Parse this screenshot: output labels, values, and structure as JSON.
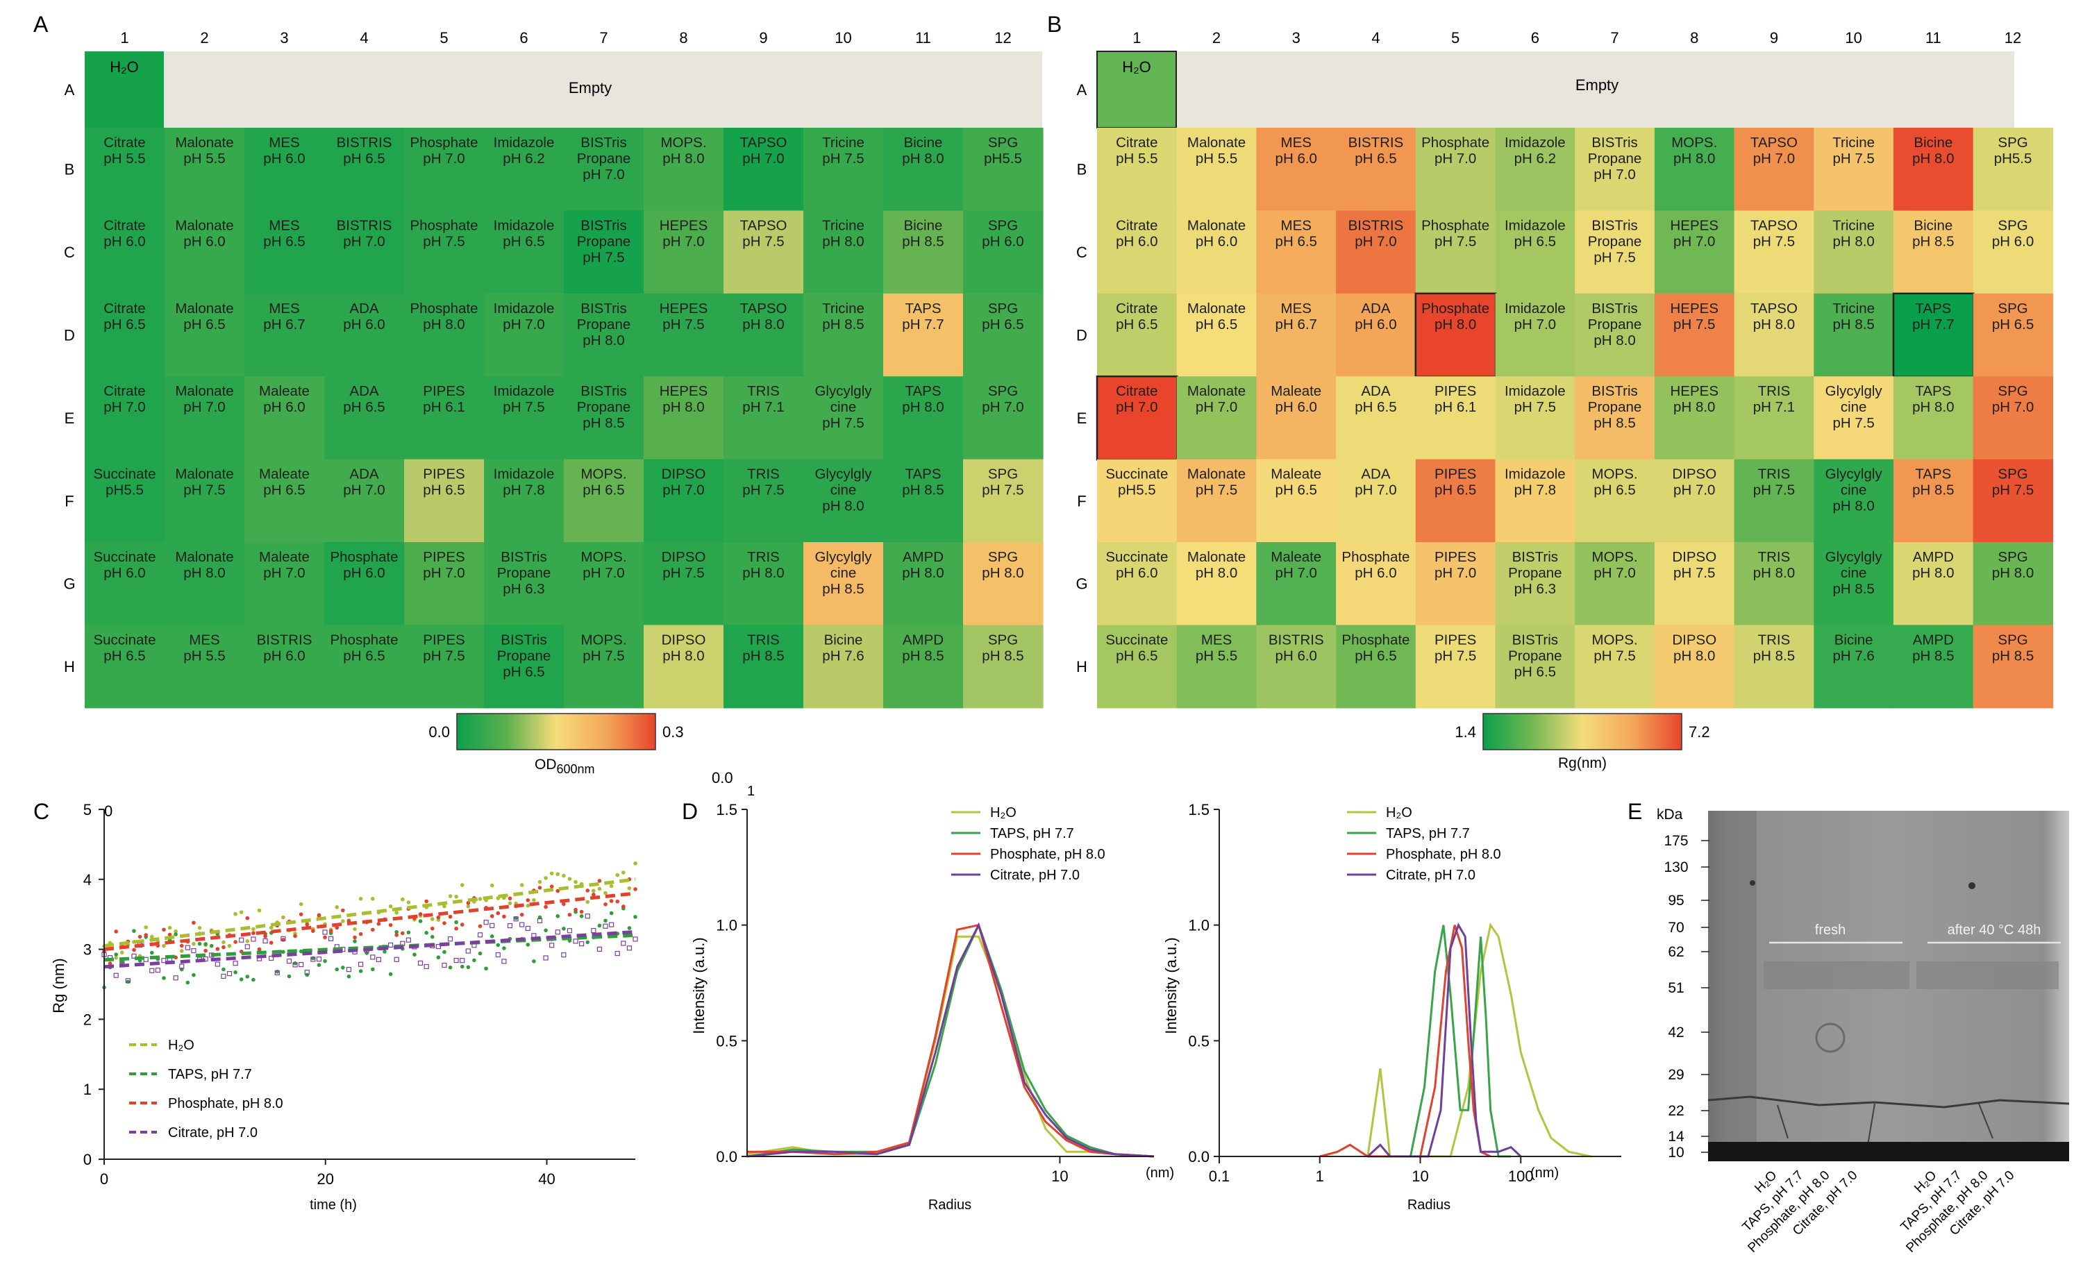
{
  "panel_labels": {
    "A": "A",
    "B": "B",
    "C": "C",
    "D": "D",
    "E": "E"
  },
  "plate": {
    "columns": [
      "1",
      "2",
      "3",
      "4",
      "5",
      "6",
      "7",
      "8",
      "9",
      "10",
      "11",
      "12"
    ],
    "rows": [
      "A",
      "B",
      "C",
      "D",
      "E",
      "F",
      "G",
      "H"
    ],
    "water_label": "H₂O",
    "empty_label": "Empty",
    "buffers": [
      [
        [
          "Citrate",
          "pH 5.5"
        ],
        [
          "Malonate",
          "pH 5.5"
        ],
        [
          "MES",
          "pH 6.0"
        ],
        [
          "BISTRIS",
          "pH 6.5"
        ],
        [
          "Phosphate",
          "pH 7.0"
        ],
        [
          "Imidazole",
          "pH 6.2"
        ],
        [
          "BISTris",
          "Propane",
          "pH 7.0"
        ],
        [
          "MOPS.",
          "pH 8.0"
        ],
        [
          "TAPSO",
          "pH 7.0"
        ],
        [
          "Tricine",
          "pH 7.5"
        ],
        [
          "Bicine",
          "pH 8.0"
        ],
        [
          "SPG",
          "pH5.5"
        ]
      ],
      [
        [
          "Citrate",
          "pH 6.0"
        ],
        [
          "Malonate",
          "pH 6.0"
        ],
        [
          "MES",
          "pH 6.5"
        ],
        [
          "BISTRIS",
          "pH 7.0"
        ],
        [
          "Phosphate",
          "pH 7.5"
        ],
        [
          "Imidazole",
          "pH 6.5"
        ],
        [
          "BISTris",
          "Propane",
          "pH 7.5"
        ],
        [
          "HEPES",
          "pH 7.0"
        ],
        [
          "TAPSO",
          "pH 7.5"
        ],
        [
          "Tricine",
          "pH 8.0"
        ],
        [
          "Bicine",
          "pH 8.5"
        ],
        [
          "SPG",
          "pH 6.0"
        ]
      ],
      [
        [
          "Citrate",
          "pH 6.5"
        ],
        [
          "Malonate",
          "pH 6.5"
        ],
        [
          "MES",
          "pH 6.7"
        ],
        [
          "ADA",
          "pH 6.0"
        ],
        [
          "Phosphate",
          "pH 8.0"
        ],
        [
          "Imidazole",
          "pH 7.0"
        ],
        [
          "BISTris",
          "Propane",
          "pH 8.0"
        ],
        [
          "HEPES",
          "pH 7.5"
        ],
        [
          "TAPSO",
          "pH 8.0"
        ],
        [
          "Tricine",
          "pH 8.5"
        ],
        [
          "TAPS",
          "pH 7.7"
        ],
        [
          "SPG",
          "pH 6.5"
        ]
      ],
      [
        [
          "Citrate",
          "pH 7.0"
        ],
        [
          "Malonate",
          "pH 7.0"
        ],
        [
          "Maleate",
          "pH 6.0"
        ],
        [
          "ADA",
          "pH 6.5"
        ],
        [
          "PIPES",
          "pH 6.1"
        ],
        [
          "Imidazole",
          "pH 7.5"
        ],
        [
          "BISTris",
          "Propane",
          "pH 8.5"
        ],
        [
          "HEPES",
          "pH 8.0"
        ],
        [
          "TRIS",
          "pH 7.1"
        ],
        [
          "Glycylgly",
          "cine",
          "pH 7.5"
        ],
        [
          "TAPS",
          "pH 8.0"
        ],
        [
          "SPG",
          "pH 7.0"
        ]
      ],
      [
        [
          "Succinate",
          "pH5.5"
        ],
        [
          "Malonate",
          "pH 7.5"
        ],
        [
          "Maleate",
          "pH 6.5"
        ],
        [
          "ADA",
          "pH 7.0"
        ],
        [
          "PIPES",
          "pH 6.5"
        ],
        [
          "Imidazole",
          "pH 7.8"
        ],
        [
          "MOPS.",
          "pH 6.5"
        ],
        [
          "DIPSO",
          "pH 7.0"
        ],
        [
          "TRIS",
          "pH 7.5"
        ],
        [
          "Glycylgly",
          "cine",
          "pH 8.0"
        ],
        [
          "TAPS",
          "pH 8.5"
        ],
        [
          "SPG",
          "pH 7.5"
        ]
      ],
      [
        [
          "Succinate",
          "pH 6.0"
        ],
        [
          "Malonate",
          "pH 8.0"
        ],
        [
          "Maleate",
          "pH 7.0"
        ],
        [
          "Phosphate",
          "pH 6.0"
        ],
        [
          "PIPES",
          "pH 7.0"
        ],
        [
          "BISTris",
          "Propane",
          "pH 6.3"
        ],
        [
          "MOPS.",
          "pH 7.0"
        ],
        [
          "DIPSO",
          "pH 7.5"
        ],
        [
          "TRIS",
          "pH 8.0"
        ],
        [
          "Glycylgly",
          "cine",
          "pH 8.5"
        ],
        [
          "AMPD",
          "pH 8.0"
        ],
        [
          "SPG",
          "pH 8.0"
        ]
      ],
      [
        [
          "Succinate",
          "pH 6.5"
        ],
        [
          "MES",
          "pH 5.5"
        ],
        [
          "BISTRIS",
          "pH 6.0"
        ],
        [
          "Phosphate",
          "pH 6.5"
        ],
        [
          "PIPES",
          "pH 7.5"
        ],
        [
          "BISTris",
          "Propane",
          "pH 6.5"
        ],
        [
          "MOPS.",
          "pH 7.5"
        ],
        [
          "DIPSO",
          "pH 8.0"
        ],
        [
          "TRIS",
          "pH 8.5"
        ],
        [
          "Bicine",
          "pH 7.6"
        ],
        [
          "AMPD",
          "pH 8.5"
        ],
        [
          "SPG",
          "pH 8.5"
        ]
      ]
    ]
  },
  "chart_data": [
    {
      "type": "heatmap",
      "panel": "A",
      "colorbar": {
        "min": 0.0,
        "max": 0.3,
        "min_label": "0.0",
        "max_label": "0.3",
        "label_main": "OD",
        "label_sub": "600nm",
        "colors": [
          "#0aa04b",
          "#5cb04e",
          "#f5dd7a",
          "#f3a85a",
          "#e8452c"
        ]
      },
      "water_value": 0.01,
      "values": [
        [
          0.02,
          0.04,
          0.02,
          0.02,
          0.03,
          0.03,
          0.03,
          0.05,
          0.01,
          0.04,
          0.03,
          0.05
        ],
        [
          0.02,
          0.04,
          0.02,
          0.02,
          0.03,
          0.03,
          0.01,
          0.06,
          0.12,
          0.04,
          0.08,
          0.04
        ],
        [
          0.02,
          0.04,
          0.03,
          0.03,
          0.03,
          0.04,
          0.03,
          0.03,
          0.03,
          0.05,
          0.19,
          0.05
        ],
        [
          0.02,
          0.03,
          0.05,
          0.03,
          0.03,
          0.03,
          0.03,
          0.07,
          0.05,
          0.05,
          0.03,
          0.05
        ],
        [
          0.02,
          0.03,
          0.05,
          0.05,
          0.12,
          0.04,
          0.08,
          0.02,
          0.03,
          0.03,
          0.03,
          0.13
        ],
        [
          0.03,
          0.03,
          0.04,
          0.02,
          0.06,
          0.04,
          0.04,
          0.03,
          0.04,
          0.2,
          0.05,
          0.19
        ],
        [
          0.04,
          0.04,
          0.04,
          0.04,
          0.04,
          0.02,
          0.04,
          0.13,
          0.02,
          0.12,
          0.06,
          0.11
        ]
      ]
    },
    {
      "type": "heatmap",
      "panel": "B",
      "colorbar": {
        "min": 1.4,
        "max": 7.2,
        "min_label": "1.4",
        "max_label": "7.2",
        "label": "Rg(nm)",
        "colors": [
          "#0aa04b",
          "#74b954",
          "#f5dd7a",
          "#f3a85a",
          "#e8452c"
        ]
      },
      "water_value": 2.6,
      "values": [
        [
          4.0,
          4.2,
          6.0,
          6.0,
          3.6,
          3.3,
          4.0,
          2.2,
          6.1,
          5.0,
          7.1,
          4.0
        ],
        [
          4.0,
          4.2,
          5.6,
          6.5,
          3.6,
          3.4,
          4.2,
          2.8,
          4.2,
          3.6,
          4.9,
          4.2
        ],
        [
          3.7,
          4.3,
          5.4,
          5.8,
          7.2,
          3.4,
          3.5,
          6.3,
          4.1,
          2.3,
          1.4,
          6.0
        ],
        [
          7.2,
          3.2,
          5.4,
          4.2,
          4.2,
          4.0,
          5.2,
          3.2,
          3.4,
          4.4,
          3.4,
          6.4
        ],
        [
          4.5,
          5.2,
          4.4,
          4.2,
          6.4,
          4.7,
          4.0,
          4.0,
          2.6,
          1.9,
          6.0,
          7.0
        ],
        [
          4.0,
          4.3,
          2.4,
          4.4,
          5.0,
          3.7,
          3.2,
          4.2,
          3.1,
          1.9,
          4.0,
          2.7
        ],
        [
          3.4,
          3.0,
          3.3,
          2.8,
          4.2,
          3.6,
          4.0,
          4.8,
          3.9,
          2.0,
          2.0,
          6.2
        ]
      ],
      "highlighted": [
        "A1",
        "D5",
        "D11",
        "E1"
      ]
    },
    {
      "type": "scatter",
      "panel": "C",
      "ylabel": "Rg (nm)",
      "xlabel": "time (h)",
      "xlim": [
        0,
        48
      ],
      "ylim": [
        0,
        5
      ],
      "xticks": [
        0,
        20,
        40
      ],
      "yticks": [
        0,
        1,
        2,
        3,
        4,
        5
      ],
      "top_left_label": "0",
      "series": [
        {
          "name": "H₂O",
          "color": "#a9bd2e",
          "fit": [
            3.05,
            4.0
          ],
          "scatter": 0.25
        },
        {
          "name": "TAPS, pH 7.7",
          "color": "#2f9e3a",
          "fit": [
            2.85,
            3.2
          ],
          "scatter": 0.4
        },
        {
          "name": "Phosphate, pH 8.0",
          "color": "#e2412d",
          "fit": [
            3.0,
            3.8
          ],
          "scatter": 0.25
        },
        {
          "name": "Citrate, pH 7.0",
          "color": "#7c3f9e",
          "fit": [
            2.75,
            3.25
          ],
          "scatter": 0.3
        }
      ]
    },
    {
      "type": "line",
      "panel": "D-left",
      "ylabel": "Intensity (a.u.)",
      "xlabel": "Radius",
      "unit_label": "(nm)",
      "xlim": [
        1.0,
        20
      ],
      "ylim": [
        0,
        1.5
      ],
      "xticks": [
        10
      ],
      "xtick_labels": [
        "10"
      ],
      "yticks": [
        0.0,
        0.5,
        1.0,
        1.5
      ],
      "ytick_labels": [
        "0.0",
        "0.5",
        "1.0",
        "1.5"
      ],
      "extra_labels": [
        "0.0",
        "1"
      ],
      "series": [
        {
          "name": "H₂O",
          "color": "#b6c341",
          "x": [
            1.0,
            1.4,
            1.9,
            2.6,
            3.3,
            4.0,
            4.7,
            5.5,
            6.5,
            7.7,
            9.0,
            10.5,
            12.5,
            15,
            20
          ],
          "y": [
            0.01,
            0.04,
            0.01,
            0.01,
            0.06,
            0.5,
            0.95,
            0.95,
            0.7,
            0.35,
            0.12,
            0.02,
            0.02,
            0.01,
            0.0
          ]
        },
        {
          "name": "TAPS, pH 7.7",
          "color": "#37a44a",
          "x": [
            1.0,
            1.4,
            1.9,
            2.6,
            3.3,
            4.0,
            4.7,
            5.5,
            6.5,
            7.7,
            9.0,
            10.5,
            12.5,
            15,
            20
          ],
          "y": [
            0.0,
            0.03,
            0.02,
            0.02,
            0.05,
            0.4,
            0.8,
            1.0,
            0.72,
            0.37,
            0.2,
            0.09,
            0.04,
            0.01,
            0.0
          ]
        },
        {
          "name": "Phosphate, pH 8.0",
          "color": "#e2412d",
          "x": [
            1.0,
            1.4,
            1.9,
            2.6,
            3.3,
            4.0,
            4.7,
            5.5,
            6.5,
            7.7,
            9.0,
            10.5,
            12.5,
            15,
            20
          ],
          "y": [
            0.02,
            0.02,
            0.01,
            0.02,
            0.06,
            0.52,
            0.98,
            1.0,
            0.65,
            0.3,
            0.15,
            0.07,
            0.02,
            0.01,
            0.0
          ]
        },
        {
          "name": "Citrate, pH 7.0",
          "color": "#6f3f9b",
          "x": [
            1.0,
            1.4,
            1.9,
            2.6,
            3.3,
            4.0,
            4.7,
            5.5,
            6.5,
            7.7,
            9.0,
            10.5,
            12.5,
            15,
            20
          ],
          "y": [
            0.0,
            0.02,
            0.02,
            0.01,
            0.05,
            0.45,
            0.82,
            1.0,
            0.7,
            0.32,
            0.18,
            0.08,
            0.03,
            0.01,
            0.0
          ]
        }
      ]
    },
    {
      "type": "line",
      "panel": "D-right",
      "ylabel": "Intensity (a.u.)",
      "xlabel": "Radius",
      "unit_label": "(nm)",
      "xlim": [
        0.1,
        1000
      ],
      "ylim": [
        0,
        1.5
      ],
      "xticks": [
        0.1,
        1,
        10,
        100
      ],
      "xtick_labels": [
        "0.1",
        "1",
        "10",
        "100"
      ],
      "yticks": [
        0.0,
        0.5,
        1.0,
        1.5
      ],
      "ytick_labels": [
        "0.0",
        "0.5",
        "1.0",
        "1.5"
      ],
      "series": [
        {
          "name": "H₂O",
          "color": "#b6c341",
          "x": [
            3,
            4,
            5,
            6,
            20,
            30,
            40,
            50,
            60,
            80,
            100,
            150,
            200,
            300,
            500
          ],
          "y": [
            0,
            0.38,
            0,
            0,
            0,
            0.3,
            0.8,
            1.0,
            0.95,
            0.7,
            0.45,
            0.2,
            0.08,
            0.02,
            0
          ]
        },
        {
          "name": "TAPS, pH 7.7",
          "color": "#37a44a",
          "x": [
            8,
            11,
            14,
            17,
            20,
            25,
            30,
            35,
            40,
            45,
            50,
            60,
            80
          ],
          "y": [
            0,
            0.3,
            0.8,
            1.0,
            0.7,
            0.2,
            0.2,
            0.6,
            0.95,
            0.6,
            0.2,
            0,
            0
          ]
        },
        {
          "name": "Phosphate, pH 8.0",
          "color": "#e2412d",
          "x": [
            1,
            1.5,
            2,
            3,
            10,
            14,
            18,
            22,
            26,
            30,
            34,
            40,
            50
          ],
          "y": [
            0,
            0.02,
            0.05,
            0,
            0,
            0.3,
            0.8,
            1.0,
            0.9,
            0.5,
            0.2,
            0.02,
            0
          ]
        },
        {
          "name": "Citrate, pH 7.0",
          "color": "#6f3f9b",
          "x": [
            3,
            4,
            5,
            8,
            12,
            16,
            20,
            24,
            28,
            32,
            36,
            40,
            60,
            80,
            100
          ],
          "y": [
            0,
            0.05,
            0,
            0,
            0,
            0.2,
            0.9,
            1.0,
            0.95,
            0.5,
            0.15,
            0.02,
            0.02,
            0.04,
            0
          ]
        }
      ]
    }
  ],
  "gel": {
    "unit": "kDa",
    "markers": [
      "175",
      "130",
      "95",
      "70",
      "62",
      "51",
      "42",
      "29",
      "22",
      "14",
      "10"
    ],
    "annotations": [
      "fresh",
      "after 40 °C 48h"
    ],
    "lanes": [
      "H₂O",
      "TAPS, pH 7.7",
      "Phosphate, pH 8.0",
      "Citrate, pH 7.0",
      "H₂O",
      "TAPS, pH 7.7",
      "Phosphate, pH 8.0",
      "Citrate, pH 7.0"
    ]
  }
}
